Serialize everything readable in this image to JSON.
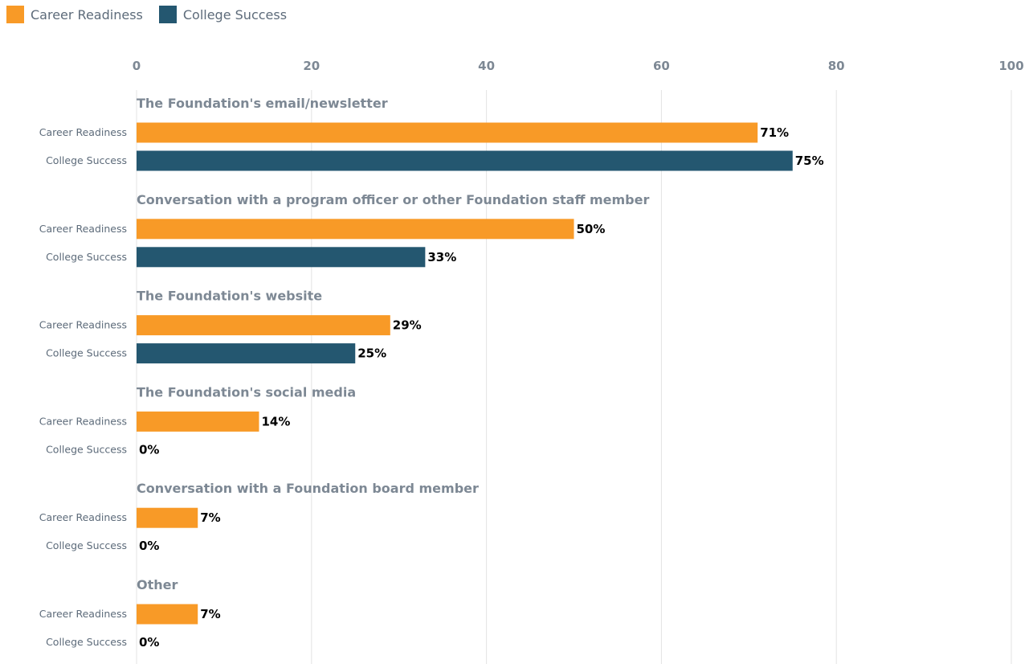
{
  "legend": {
    "items": [
      {
        "label": "Career Readiness",
        "color": "#f89a27"
      },
      {
        "label": "College Success",
        "color": "#245770"
      }
    ]
  },
  "chart_data": {
    "type": "bar",
    "orientation": "horizontal",
    "title": "",
    "xlabel": "",
    "ylabel": "",
    "xlim": [
      0,
      100
    ],
    "x_ticks": [
      "0",
      "20",
      "40",
      "60",
      "80",
      "100"
    ],
    "grid": true,
    "legend_position": "top-left",
    "categories": [
      "The Foundation's email/newsletter",
      "Conversation with a program officer or other Foundation staff member",
      "The Foundation's website",
      "The Foundation's social media",
      "Conversation with a Foundation board member",
      "Other"
    ],
    "series": [
      {
        "name": "Career Readiness",
        "color": "#f89a27",
        "values": [
          71,
          50,
          29,
          14,
          7,
          7
        ],
        "value_labels": [
          "71%",
          "50%",
          "29%",
          "14%",
          "7%",
          "7%"
        ]
      },
      {
        "name": "College Success",
        "color": "#245770",
        "values": [
          75,
          33,
          25,
          0,
          0,
          0
        ],
        "value_labels": [
          "75%",
          "33%",
          "25%",
          "0%",
          "0%",
          "0%"
        ]
      }
    ]
  }
}
